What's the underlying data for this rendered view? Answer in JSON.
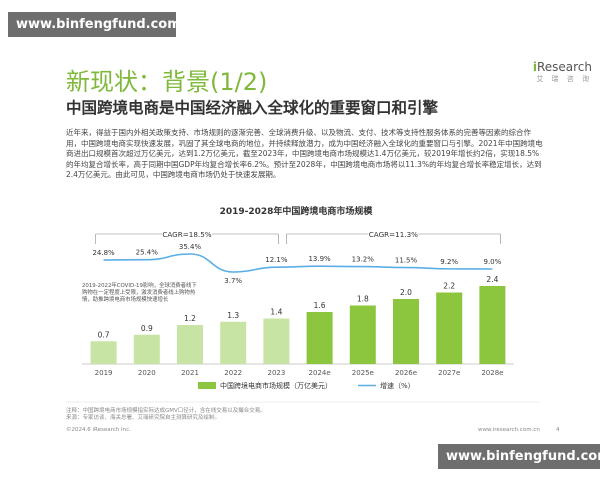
{
  "watermarks": {
    "top": "www.binfengfund.com",
    "bottom": "www.binfengfund.com"
  },
  "slide": {
    "title": "新现状：背景(1/2)",
    "subtitle": "中国跨境电商是中国经济融入全球化的重要窗口和引擎",
    "paragraph": "近年来，得益于国内外相关政策支持、市场规则的逐渐完善、全球消费升级、以及物流、支付、技术等支持性服务体系的完善等因素的综合作用，中国跨境电商实现快速发展，巩固了其全球电商的地位，并持续释放潜力，成为中国经济融入全球化的重要窗口与引擎。2021年中国跨境电商进出口规模首次超过万亿美元，达到1.2万亿美元，截至2023年，中国跨境电商市场规模达1.4万亿美元，较2019年增长约2倍，实现18.5%的年均复合增长率，高于同期中国GDP年均复合增长率6.2%。预计至2028年，中国跨境电商市场将以11.3%的年均复合增长率稳定增长，达到2.4万亿美元。由此可见，中国跨境电商市场仍处于快速发展期。",
    "covid_note": "2019-2022年COVID-19影响，全球消费者线下购物在一定程度上受限，激发消费者线上购物热情，助推跨境电商市场规模快速增长",
    "note": "注释：中国跨境电商市场规模指实际达成GMV口径计，含在线交易以及撮合交易。",
    "source": "来源：专家访谈、海关总署、艾瑞研究院自主测算研究及绘制。",
    "footer_left": "©2024.6 iResearch Inc.",
    "footer_right": "www.iresearch.com.cn",
    "page_number": "4"
  },
  "logo": {
    "brand_prefix": "i",
    "brand_rest": "Research",
    "cn": "艾 瑞 咨 询"
  },
  "colors": {
    "accent": "#7fb83a",
    "bar_light": "#c8e4a4",
    "bar_dark": "#8cc63f",
    "line": "#5aaee6"
  },
  "chart_data": {
    "type": "bar",
    "title": "2019-2028年中国跨境电商市场规模",
    "categories": [
      "2019",
      "2020",
      "2021",
      "2022",
      "2023",
      "2024e",
      "2025e",
      "2026e",
      "2027e",
      "2028e"
    ],
    "series": [
      {
        "name": "中国跨境电商市场规模（万亿美元）",
        "values": [
          0.7,
          0.9,
          1.2,
          1.3,
          1.4,
          1.6,
          1.8,
          2.0,
          2.2,
          2.4
        ]
      },
      {
        "name": "增速（%）",
        "values": [
          24.8,
          25.4,
          35.4,
          3.7,
          12.1,
          13.9,
          13.2,
          11.5,
          9.2,
          9.0
        ]
      }
    ],
    "value_labels": [
      "0.7",
      "0.9",
      "1.2",
      "1.3",
      "1.4",
      "1.6",
      "1.8",
      "2.0",
      "2.2",
      "2.4"
    ],
    "growth_labels": [
      "24.8%",
      "25.4%",
      "35.4%",
      "3.7%",
      "12.1%",
      "13.9%",
      "13.2%",
      "11.5%",
      "9.2%",
      "9.0%"
    ],
    "cagr_labels": [
      "CAGR=18.5%",
      "CAGR=11.3%"
    ],
    "legend_placement": "bottom"
  }
}
